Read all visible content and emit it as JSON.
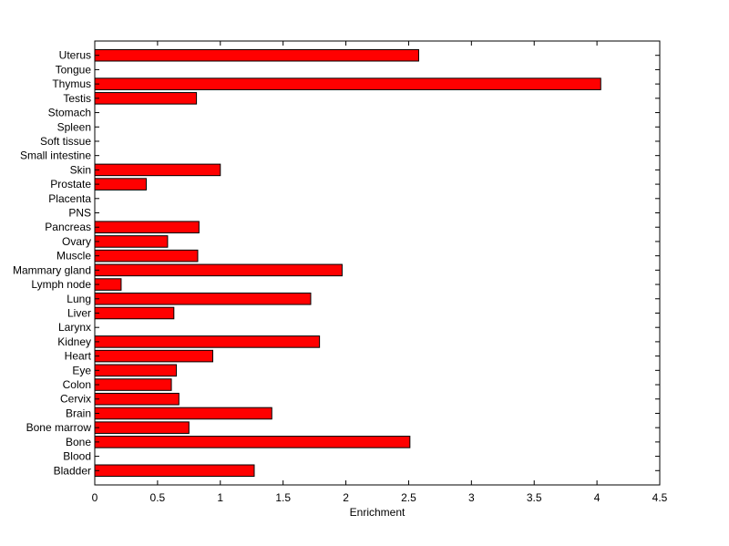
{
  "chart_data": {
    "type": "bar",
    "orientation": "horizontal",
    "categories": [
      "Uterus",
      "Tongue",
      "Thymus",
      "Testis",
      "Stomach",
      "Spleen",
      "Soft tissue",
      "Small intestine",
      "Skin",
      "Prostate",
      "Placenta",
      "PNS",
      "Pancreas",
      "Ovary",
      "Muscle",
      "Mammary gland",
      "Lymph node",
      "Lung",
      "Liver",
      "Larynx",
      "Kidney",
      "Heart",
      "Eye",
      "Colon",
      "Cervix",
      "Brain",
      "Bone marrow",
      "Bone",
      "Blood",
      "Bladder"
    ],
    "values": [
      2.58,
      0,
      4.03,
      0.81,
      0,
      0,
      0,
      0,
      1.0,
      0.41,
      0,
      0,
      0.83,
      0.58,
      0.82,
      1.97,
      0.21,
      1.72,
      0.63,
      0,
      1.79,
      0.94,
      0.65,
      0.61,
      0.67,
      1.41,
      0.75,
      2.51,
      0,
      1.27
    ],
    "xlabel": "Enrichment",
    "ylabel": "",
    "title": "",
    "xlim": [
      0,
      4.5
    ],
    "xticks": [
      "0",
      "0.5",
      "1",
      "1.5",
      "2",
      "2.5",
      "3",
      "3.5",
      "4",
      "4.5"
    ],
    "bar_color": "#ff0000",
    "bar_edge_color": "#000000",
    "grid": false,
    "legend": "none"
  }
}
